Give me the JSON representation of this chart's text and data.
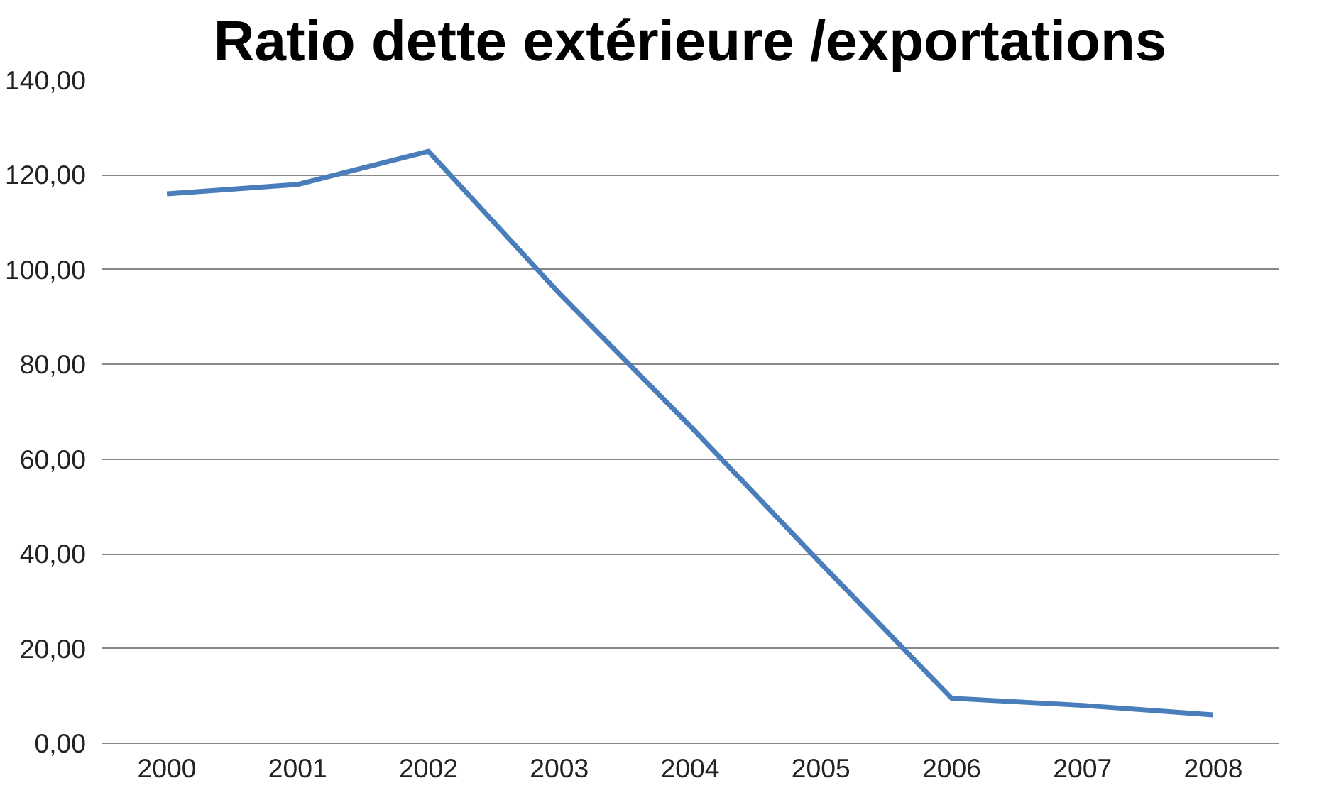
{
  "chart_data": {
    "type": "line",
    "title": "Ratio dette extérieure /exportations",
    "categories": [
      "2000",
      "2001",
      "2002",
      "2003",
      "2004",
      "2005",
      "2006",
      "2007",
      "2008"
    ],
    "series": [
      {
        "color": "#4a7ebb",
        "values": [
          116,
          118,
          125,
          95,
          67,
          38,
          9.5,
          8,
          6
        ]
      }
    ],
    "ylim": [
      0,
      140
    ],
    "yticks": [
      {
        "value": 0,
        "label": "0,00"
      },
      {
        "value": 20,
        "label": "20,00"
      },
      {
        "value": 40,
        "label": "40,00"
      },
      {
        "value": 60,
        "label": "60,00"
      },
      {
        "value": 80,
        "label": "80,00"
      },
      {
        "value": 100,
        "label": "100,00"
      },
      {
        "value": 120,
        "label": "120,00"
      },
      {
        "value": 140,
        "label": "140,00"
      }
    ],
    "grid": "y",
    "marker": "none",
    "line_style": "solid"
  }
}
